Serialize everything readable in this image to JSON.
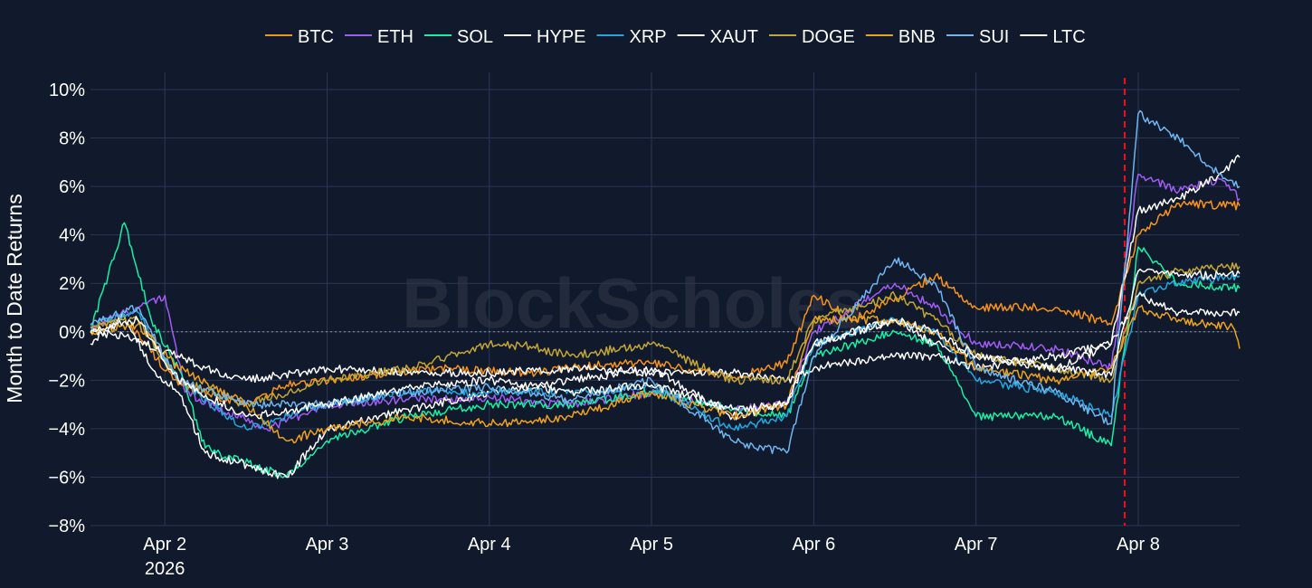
{
  "chart_data": {
    "type": "line",
    "title": "",
    "xlabel": "",
    "ylabel": "Month to Date Returns",
    "ylim": [
      -8,
      10
    ],
    "y_unit": "%",
    "yticks": [
      -8,
      -6,
      -4,
      -2,
      0,
      2,
      4,
      6,
      8,
      10
    ],
    "ytick_labels": [
      "−8%",
      "−6%",
      "−4%",
      "−2%",
      "0%",
      "2%",
      "4%",
      "6%",
      "8%",
      "10%"
    ],
    "xlim": [
      "2026-04-01 13:00",
      "2026-04-08 15:00"
    ],
    "xticks": [
      "2026-04-02",
      "2026-04-03",
      "2026-04-04",
      "2026-04-05",
      "2026-04-06",
      "2026-04-07",
      "2026-04-08"
    ],
    "xtick_labels": [
      "Apr 2",
      "Apr 3",
      "Apr 4",
      "Apr 5",
      "Apr 6",
      "Apr 7",
      "Apr 8"
    ],
    "xtick_sublabel": "2026",
    "grid": true,
    "legend_position": "top-center",
    "watermark": "BlockScholes",
    "reference_lines": [
      {
        "axis": "y",
        "value": 0,
        "style": "dotted",
        "color": "#8a93a6"
      },
      {
        "axis": "x",
        "value": "2026-04-07 22:00",
        "style": "dashed",
        "color": "#e8101a"
      }
    ],
    "series": [
      {
        "name": "BTC",
        "color": "#f7931a",
        "points": [
          [
            "2026-04-01 13:00",
            0.0
          ],
          [
            "2026-04-01 18:00",
            0.6
          ],
          [
            "2026-04-02 02:00",
            -2.2
          ],
          [
            "2026-04-02 12:00",
            -3.0
          ],
          [
            "2026-04-02 18:00",
            -2.2
          ],
          [
            "2026-04-03 06:00",
            -1.8
          ],
          [
            "2026-04-03 18:00",
            -1.5
          ],
          [
            "2026-04-04 06:00",
            -1.7
          ],
          [
            "2026-04-04 18:00",
            -1.3
          ],
          [
            "2026-04-05 00:00",
            -1.3
          ],
          [
            "2026-04-05 12:00",
            -1.9
          ],
          [
            "2026-04-05 20:00",
            -1.3
          ],
          [
            "2026-04-06 00:00",
            1.5
          ],
          [
            "2026-04-06 06:00",
            0.5
          ],
          [
            "2026-04-06 18:00",
            2.3
          ],
          [
            "2026-04-07 00:00",
            1.0
          ],
          [
            "2026-04-07 12:00",
            1.0
          ],
          [
            "2026-04-07 20:00",
            0.3
          ],
          [
            "2026-04-08 00:00",
            4.0
          ],
          [
            "2026-04-08 06:00",
            5.3
          ],
          [
            "2026-04-08 15:00",
            5.2
          ]
        ]
      },
      {
        "name": "ETH",
        "color": "#a25cf6",
        "points": [
          [
            "2026-04-01 13:00",
            0.2
          ],
          [
            "2026-04-01 20:00",
            1.0
          ],
          [
            "2026-04-02 00:00",
            1.5
          ],
          [
            "2026-04-02 03:00",
            -2.5
          ],
          [
            "2026-04-02 15:00",
            -4.0
          ],
          [
            "2026-04-03 00:00",
            -3.0
          ],
          [
            "2026-04-03 12:00",
            -2.8
          ],
          [
            "2026-04-04 00:00",
            -2.7
          ],
          [
            "2026-04-04 12:00",
            -3.0
          ],
          [
            "2026-04-05 00:00",
            -2.5
          ],
          [
            "2026-04-05 12:00",
            -3.2
          ],
          [
            "2026-04-05 20:00",
            -3.0
          ],
          [
            "2026-04-06 00:00",
            0.0
          ],
          [
            "2026-04-06 12:00",
            2.0
          ],
          [
            "2026-04-06 18:00",
            1.0
          ],
          [
            "2026-04-07 00:00",
            -0.5
          ],
          [
            "2026-04-07 12:00",
            -0.7
          ],
          [
            "2026-04-07 20:00",
            -1.5
          ],
          [
            "2026-04-08 00:00",
            6.5
          ],
          [
            "2026-04-08 06:00",
            5.8
          ],
          [
            "2026-04-08 12:00",
            6.3
          ],
          [
            "2026-04-08 15:00",
            5.5
          ]
        ]
      },
      {
        "name": "SOL",
        "color": "#14f1a5",
        "points": [
          [
            "2026-04-01 13:00",
            0.0
          ],
          [
            "2026-04-01 18:00",
            4.5
          ],
          [
            "2026-04-01 22:00",
            0.5
          ],
          [
            "2026-04-02 02:00",
            -1.5
          ],
          [
            "2026-04-02 06:00",
            -4.8
          ],
          [
            "2026-04-02 18:00",
            -6.0
          ],
          [
            "2026-04-03 00:00",
            -4.5
          ],
          [
            "2026-04-03 12:00",
            -3.5
          ],
          [
            "2026-04-04 00:00",
            -3.0
          ],
          [
            "2026-04-04 12:00",
            -3.0
          ],
          [
            "2026-04-05 00:00",
            -2.5
          ],
          [
            "2026-04-05 12:00",
            -3.2
          ],
          [
            "2026-04-05 20:00",
            -3.5
          ],
          [
            "2026-04-06 00:00",
            -1.0
          ],
          [
            "2026-04-06 12:00",
            0.0
          ],
          [
            "2026-04-06 18:00",
            -0.5
          ],
          [
            "2026-04-07 00:00",
            -3.5
          ],
          [
            "2026-04-07 12:00",
            -3.5
          ],
          [
            "2026-04-07 20:00",
            -4.7
          ],
          [
            "2026-04-08 00:00",
            3.5
          ],
          [
            "2026-04-08 06:00",
            2.0
          ],
          [
            "2026-04-08 15:00",
            1.8
          ]
        ]
      },
      {
        "name": "HYPE",
        "color": "#ffffff",
        "points": [
          [
            "2026-04-01 13:00",
            -0.5
          ],
          [
            "2026-04-01 18:00",
            0.7
          ],
          [
            "2026-04-01 22:00",
            -1.5
          ],
          [
            "2026-04-02 02:00",
            -2.5
          ],
          [
            "2026-04-02 06:00",
            -5.0
          ],
          [
            "2026-04-02 18:00",
            -6.0
          ],
          [
            "2026-04-03 00:00",
            -4.0
          ],
          [
            "2026-04-03 12:00",
            -3.2
          ],
          [
            "2026-04-04 00:00",
            -2.5
          ],
          [
            "2026-04-04 12:00",
            -2.0
          ],
          [
            "2026-04-05 00:00",
            -1.5
          ],
          [
            "2026-04-05 12:00",
            -3.5
          ],
          [
            "2026-04-05 20:00",
            -3.0
          ],
          [
            "2026-04-06 00:00",
            -0.5
          ],
          [
            "2026-04-06 12:00",
            0.5
          ],
          [
            "2026-04-06 18:00",
            -0.5
          ],
          [
            "2026-04-07 00:00",
            -1.0
          ],
          [
            "2026-04-07 12:00",
            -1.5
          ],
          [
            "2026-04-07 20:00",
            -0.5
          ],
          [
            "2026-04-08 00:00",
            5.0
          ],
          [
            "2026-04-08 06:00",
            5.5
          ],
          [
            "2026-04-08 12:00",
            6.5
          ],
          [
            "2026-04-08 15:00",
            7.2
          ]
        ]
      },
      {
        "name": "XRP",
        "color": "#23a7e0",
        "points": [
          [
            "2026-04-01 13:00",
            0.3
          ],
          [
            "2026-04-01 20:00",
            0.8
          ],
          [
            "2026-04-02 02:00",
            -2.0
          ],
          [
            "2026-04-02 12:00",
            -4.0
          ],
          [
            "2026-04-03 00:00",
            -3.0
          ],
          [
            "2026-04-03 12:00",
            -2.5
          ],
          [
            "2026-04-04 00:00",
            -2.5
          ],
          [
            "2026-04-04 12:00",
            -2.5
          ],
          [
            "2026-04-05 00:00",
            -2.3
          ],
          [
            "2026-04-05 12:00",
            -4.0
          ],
          [
            "2026-04-05 20:00",
            -3.5
          ],
          [
            "2026-04-06 00:00",
            -0.5
          ],
          [
            "2026-04-06 12:00",
            0.5
          ],
          [
            "2026-04-06 18:00",
            0.0
          ],
          [
            "2026-04-07 00:00",
            -2.0
          ],
          [
            "2026-04-07 12:00",
            -2.5
          ],
          [
            "2026-04-07 20:00",
            -3.5
          ],
          [
            "2026-04-08 00:00",
            1.5
          ],
          [
            "2026-04-08 06:00",
            2.0
          ],
          [
            "2026-04-08 15:00",
            2.3
          ]
        ]
      },
      {
        "name": "XAUT",
        "color": "#ffffff",
        "points": [
          [
            "2026-04-01 13:00",
            0.0
          ],
          [
            "2026-04-01 18:00",
            -0.2
          ],
          [
            "2026-04-02 00:00",
            -0.8
          ],
          [
            "2026-04-02 06:00",
            -1.5
          ],
          [
            "2026-04-02 12:00",
            -2.0
          ],
          [
            "2026-04-03 00:00",
            -1.5
          ],
          [
            "2026-04-03 12:00",
            -1.7
          ],
          [
            "2026-04-04 00:00",
            -1.7
          ],
          [
            "2026-04-04 12:00",
            -1.5
          ],
          [
            "2026-04-05 00:00",
            -1.7
          ],
          [
            "2026-04-05 12:00",
            -1.7
          ],
          [
            "2026-04-05 20:00",
            -2.0
          ],
          [
            "2026-04-06 00:00",
            -1.5
          ],
          [
            "2026-04-06 12:00",
            -1.0
          ],
          [
            "2026-04-06 18:00",
            -1.0
          ],
          [
            "2026-04-07 00:00",
            -1.5
          ],
          [
            "2026-04-07 12:00",
            -1.0
          ],
          [
            "2026-04-07 20:00",
            -0.5
          ],
          [
            "2026-04-08 00:00",
            1.5
          ],
          [
            "2026-04-08 06:00",
            0.8
          ],
          [
            "2026-04-08 15:00",
            0.8
          ]
        ]
      },
      {
        "name": "DOGE",
        "color": "#c3a634",
        "points": [
          [
            "2026-04-01 13:00",
            0.2
          ],
          [
            "2026-04-01 20:00",
            0.5
          ],
          [
            "2026-04-02 02:00",
            -2.0
          ],
          [
            "2026-04-02 12:00",
            -3.0
          ],
          [
            "2026-04-03 00:00",
            -2.0
          ],
          [
            "2026-04-03 12:00",
            -1.5
          ],
          [
            "2026-04-04 00:00",
            -0.5
          ],
          [
            "2026-04-04 06:00",
            -0.6
          ],
          [
            "2026-04-04 12:00",
            -1.0
          ],
          [
            "2026-04-05 00:00",
            -0.5
          ],
          [
            "2026-04-05 12:00",
            -2.0
          ],
          [
            "2026-04-05 20:00",
            -2.0
          ],
          [
            "2026-04-06 00:00",
            0.5
          ],
          [
            "2026-04-06 12:00",
            1.5
          ],
          [
            "2026-04-06 18:00",
            0.5
          ],
          [
            "2026-04-07 00:00",
            -1.0
          ],
          [
            "2026-04-07 12:00",
            -1.5
          ],
          [
            "2026-04-07 20:00",
            -2.0
          ],
          [
            "2026-04-08 00:00",
            2.0
          ],
          [
            "2026-04-08 06:00",
            2.5
          ],
          [
            "2026-04-08 15:00",
            2.7
          ]
        ]
      },
      {
        "name": "BNB",
        "color": "#f0a31a",
        "points": [
          [
            "2026-04-01 13:00",
            0.0
          ],
          [
            "2026-04-01 20:00",
            0.3
          ],
          [
            "2026-04-02 02:00",
            -1.5
          ],
          [
            "2026-04-02 12:00",
            -3.0
          ],
          [
            "2026-04-02 18:00",
            -4.5
          ],
          [
            "2026-04-03 00:00",
            -4.0
          ],
          [
            "2026-04-03 12:00",
            -3.5
          ],
          [
            "2026-04-04 00:00",
            -3.8
          ],
          [
            "2026-04-04 12:00",
            -3.5
          ],
          [
            "2026-04-05 00:00",
            -2.5
          ],
          [
            "2026-04-05 12:00",
            -3.5
          ],
          [
            "2026-04-05 20:00",
            -3.0
          ],
          [
            "2026-04-06 00:00",
            0.5
          ],
          [
            "2026-04-06 12:00",
            0.5
          ],
          [
            "2026-04-06 18:00",
            0.0
          ],
          [
            "2026-04-07 00:00",
            -1.5
          ],
          [
            "2026-04-07 12:00",
            -2.0
          ],
          [
            "2026-04-07 20:00",
            -1.5
          ],
          [
            "2026-04-08 00:00",
            1.0
          ],
          [
            "2026-04-08 06:00",
            0.5
          ],
          [
            "2026-04-08 14:00",
            0.2
          ],
          [
            "2026-04-08 15:00",
            -0.7
          ]
        ]
      },
      {
        "name": "SUI",
        "color": "#6fb5f0",
        "points": [
          [
            "2026-04-01 13:00",
            0.3
          ],
          [
            "2026-04-01 20:00",
            1.0
          ],
          [
            "2026-04-02 02:00",
            -2.0
          ],
          [
            "2026-04-02 12:00",
            -3.0
          ],
          [
            "2026-04-03 00:00",
            -3.0
          ],
          [
            "2026-04-03 12:00",
            -2.5
          ],
          [
            "2026-04-04 00:00",
            -2.3
          ],
          [
            "2026-04-04 12:00",
            -2.8
          ],
          [
            "2026-04-05 00:00",
            -2.0
          ],
          [
            "2026-04-05 12:00",
            -4.5
          ],
          [
            "2026-04-05 20:00",
            -5.0
          ],
          [
            "2026-04-06 00:00",
            -1.0
          ],
          [
            "2026-04-06 12:00",
            3.0
          ],
          [
            "2026-04-06 18:00",
            2.0
          ],
          [
            "2026-04-07 00:00",
            -1.5
          ],
          [
            "2026-04-07 12:00",
            -2.5
          ],
          [
            "2026-04-07 20:00",
            -3.8
          ],
          [
            "2026-04-08 00:00",
            9.0
          ],
          [
            "2026-04-08 06:00",
            8.0
          ],
          [
            "2026-04-08 12:00",
            6.5
          ],
          [
            "2026-04-08 15:00",
            6.0
          ]
        ]
      },
      {
        "name": "LTC",
        "color": "#ffffff",
        "points": [
          [
            "2026-04-01 13:00",
            0.0
          ],
          [
            "2026-04-01 20:00",
            0.5
          ],
          [
            "2026-04-02 02:00",
            -2.0
          ],
          [
            "2026-04-02 12:00",
            -3.5
          ],
          [
            "2026-04-03 00:00",
            -3.0
          ],
          [
            "2026-04-03 12:00",
            -2.3
          ],
          [
            "2026-04-04 00:00",
            -2.0
          ],
          [
            "2026-04-04 12:00",
            -2.5
          ],
          [
            "2026-04-05 00:00",
            -2.2
          ],
          [
            "2026-04-05 12:00",
            -3.2
          ],
          [
            "2026-04-05 20:00",
            -3.0
          ],
          [
            "2026-04-06 00:00",
            -0.5
          ],
          [
            "2026-04-06 12:00",
            0.5
          ],
          [
            "2026-04-06 18:00",
            0.0
          ],
          [
            "2026-04-07 00:00",
            -1.0
          ],
          [
            "2026-04-07 12:00",
            -1.5
          ],
          [
            "2026-04-07 20:00",
            -1.8
          ],
          [
            "2026-04-08 00:00",
            2.5
          ],
          [
            "2026-04-08 06:00",
            2.3
          ],
          [
            "2026-04-08 15:00",
            2.4
          ]
        ]
      }
    ]
  }
}
